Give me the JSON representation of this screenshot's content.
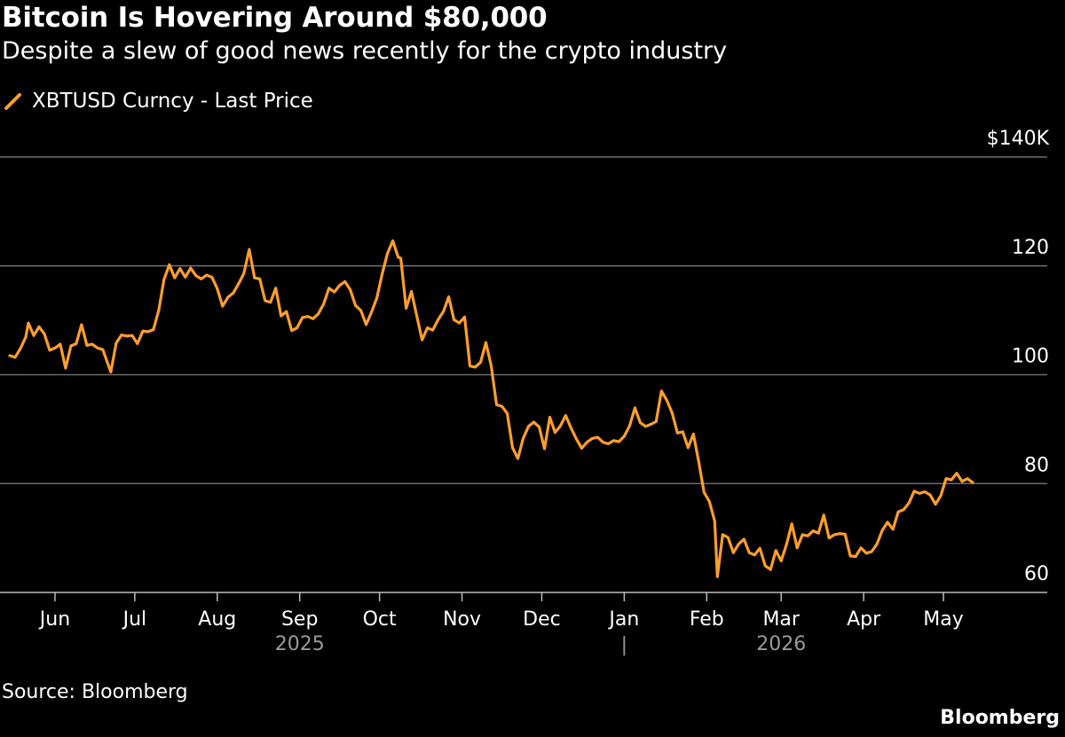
{
  "chart_data": {
    "type": "line",
    "title": "Bitcoin Is Hovering Around $80,000",
    "subtitle": "Despite a slew of good news recently for the crypto industry",
    "source": "Source: Bloomberg",
    "brand": "Bloomberg",
    "colors": {
      "line": "#ff9e2c",
      "grid": "#6b6b6b",
      "axis": "#bdbdbd",
      "background": "#000000",
      "year_label": "#9a9a9a"
    },
    "legend_placement": "top-left",
    "grid": true,
    "y_axis": {
      "side": "right",
      "ylim": [
        60,
        140
      ],
      "ticks": [
        {
          "value": 140,
          "label": "$140K"
        },
        {
          "value": 120,
          "label": "120"
        },
        {
          "value": 100,
          "label": "100"
        },
        {
          "value": 80,
          "label": "80"
        },
        {
          "value": 60,
          "label": "60"
        }
      ]
    },
    "x_axis": {
      "xlim": [
        "2025-05-15",
        "2026-05-20"
      ],
      "ticks": [
        {
          "date": "2025-06-01",
          "label": "Jun"
        },
        {
          "date": "2025-07-01",
          "label": "Jul"
        },
        {
          "date": "2025-08-01",
          "label": "Aug"
        },
        {
          "date": "2025-09-01",
          "label": "Sep"
        },
        {
          "date": "2025-10-01",
          "label": "Oct"
        },
        {
          "date": "2025-11-01",
          "label": "Nov"
        },
        {
          "date": "2025-12-01",
          "label": "Dec"
        },
        {
          "date": "2026-01-01",
          "label": "Jan"
        },
        {
          "date": "2026-02-01",
          "label": "Feb"
        },
        {
          "date": "2026-03-01",
          "label": "Mar"
        },
        {
          "date": "2026-04-01",
          "label": "Apr"
        },
        {
          "date": "2026-05-01",
          "label": "May"
        }
      ],
      "year_labels": [
        {
          "date": "2025-09-01",
          "label": "2025"
        },
        {
          "date": "2026-03-01",
          "label": "2026"
        }
      ],
      "year_divider": {
        "date": "2026-01-01",
        "label": "|"
      }
    },
    "series": [
      {
        "name": "XBTUSD Curncy - Last Price",
        "points": [
          [
            "2025-05-15",
            103.5
          ],
          [
            "2025-05-17",
            103.2
          ],
          [
            "2025-05-19",
            104.8
          ],
          [
            "2025-05-21",
            106.9
          ],
          [
            "2025-05-22",
            109.5
          ],
          [
            "2025-05-24",
            107.2
          ],
          [
            "2025-05-26",
            108.8
          ],
          [
            "2025-05-28",
            107.5
          ],
          [
            "2025-05-30",
            104.5
          ],
          [
            "2025-06-01",
            104.9
          ],
          [
            "2025-06-03",
            105.6
          ],
          [
            "2025-06-05",
            101.2
          ],
          [
            "2025-06-07",
            105.3
          ],
          [
            "2025-06-09",
            105.7
          ],
          [
            "2025-06-11",
            109.2
          ],
          [
            "2025-06-13",
            105.4
          ],
          [
            "2025-06-15",
            105.6
          ],
          [
            "2025-06-17",
            104.9
          ],
          [
            "2025-06-19",
            104.6
          ],
          [
            "2025-06-20",
            103.2
          ],
          [
            "2025-06-22",
            100.5
          ],
          [
            "2025-06-24",
            105.8
          ],
          [
            "2025-06-26",
            107.3
          ],
          [
            "2025-06-28",
            107.1
          ],
          [
            "2025-06-30",
            107.2
          ],
          [
            "2025-07-02",
            105.7
          ],
          [
            "2025-07-04",
            108.0
          ],
          [
            "2025-07-06",
            107.9
          ],
          [
            "2025-07-08",
            108.3
          ],
          [
            "2025-07-10",
            111.8
          ],
          [
            "2025-07-12",
            117.5
          ],
          [
            "2025-07-14",
            120.2
          ],
          [
            "2025-07-16",
            117.8
          ],
          [
            "2025-07-18",
            119.5
          ],
          [
            "2025-07-20",
            117.9
          ],
          [
            "2025-07-22",
            119.6
          ],
          [
            "2025-07-24",
            118.2
          ],
          [
            "2025-07-26",
            117.6
          ],
          [
            "2025-07-28",
            118.3
          ],
          [
            "2025-07-30",
            117.9
          ],
          [
            "2025-08-01",
            115.8
          ],
          [
            "2025-08-03",
            112.6
          ],
          [
            "2025-08-05",
            114.2
          ],
          [
            "2025-08-07",
            115.0
          ],
          [
            "2025-08-09",
            116.7
          ],
          [
            "2025-08-11",
            118.6
          ],
          [
            "2025-08-13",
            123.0
          ],
          [
            "2025-08-15",
            117.8
          ],
          [
            "2025-08-17",
            117.6
          ],
          [
            "2025-08-19",
            113.6
          ],
          [
            "2025-08-21",
            113.3
          ],
          [
            "2025-08-23",
            115.9
          ],
          [
            "2025-08-25",
            110.8
          ],
          [
            "2025-08-27",
            111.6
          ],
          [
            "2025-08-29",
            108.1
          ],
          [
            "2025-08-31",
            108.6
          ],
          [
            "2025-09-02",
            110.5
          ],
          [
            "2025-09-04",
            110.7
          ],
          [
            "2025-09-06",
            110.3
          ],
          [
            "2025-09-08",
            111.2
          ],
          [
            "2025-09-10",
            113.0
          ],
          [
            "2025-09-12",
            115.9
          ],
          [
            "2025-09-14",
            115.2
          ],
          [
            "2025-09-16",
            116.4
          ],
          [
            "2025-09-18",
            117.1
          ],
          [
            "2025-09-20",
            115.6
          ],
          [
            "2025-09-22",
            112.7
          ],
          [
            "2025-09-24",
            111.8
          ],
          [
            "2025-09-26",
            109.2
          ],
          [
            "2025-09-28",
            111.5
          ],
          [
            "2025-09-30",
            114.1
          ],
          [
            "2025-10-02",
            118.5
          ],
          [
            "2025-10-04",
            122.3
          ],
          [
            "2025-10-06",
            124.6
          ],
          [
            "2025-10-08",
            121.6
          ],
          [
            "2025-10-09",
            121.4
          ],
          [
            "2025-10-11",
            112.2
          ],
          [
            "2025-10-13",
            115.3
          ],
          [
            "2025-10-15",
            110.8
          ],
          [
            "2025-10-17",
            106.4
          ],
          [
            "2025-10-19",
            108.6
          ],
          [
            "2025-10-21",
            108.2
          ],
          [
            "2025-10-23",
            110.1
          ],
          [
            "2025-10-25",
            111.6
          ],
          [
            "2025-10-27",
            114.3
          ],
          [
            "2025-10-29",
            110.1
          ],
          [
            "2025-10-31",
            109.5
          ],
          [
            "2025-11-02",
            110.6
          ],
          [
            "2025-11-04",
            101.6
          ],
          [
            "2025-11-06",
            101.4
          ],
          [
            "2025-11-08",
            102.3
          ],
          [
            "2025-11-10",
            105.9
          ],
          [
            "2025-11-12",
            101.6
          ],
          [
            "2025-11-14",
            94.5
          ],
          [
            "2025-11-16",
            94.2
          ],
          [
            "2025-11-18",
            92.9
          ],
          [
            "2025-11-20",
            86.6
          ],
          [
            "2025-11-22",
            84.6
          ],
          [
            "2025-11-24",
            88.3
          ],
          [
            "2025-11-26",
            90.5
          ],
          [
            "2025-11-28",
            91.3
          ],
          [
            "2025-11-30",
            90.4
          ],
          [
            "2025-12-02",
            86.4
          ],
          [
            "2025-12-04",
            92.2
          ],
          [
            "2025-12-06",
            89.4
          ],
          [
            "2025-12-08",
            90.6
          ],
          [
            "2025-12-10",
            92.5
          ],
          [
            "2025-12-12",
            90.2
          ],
          [
            "2025-12-14",
            88.2
          ],
          [
            "2025-12-16",
            86.5
          ],
          [
            "2025-12-18",
            87.6
          ],
          [
            "2025-12-20",
            88.3
          ],
          [
            "2025-12-22",
            88.5
          ],
          [
            "2025-12-24",
            87.6
          ],
          [
            "2025-12-26",
            87.3
          ],
          [
            "2025-12-28",
            87.9
          ],
          [
            "2025-12-30",
            87.7
          ],
          [
            "2026-01-01",
            88.7
          ],
          [
            "2026-01-03",
            90.6
          ],
          [
            "2026-01-05",
            93.9
          ],
          [
            "2026-01-07",
            91.2
          ],
          [
            "2026-01-09",
            90.5
          ],
          [
            "2026-01-11",
            90.9
          ],
          [
            "2026-01-13",
            91.4
          ],
          [
            "2026-01-15",
            97.0
          ],
          [
            "2026-01-17",
            95.3
          ],
          [
            "2026-01-19",
            93.0
          ],
          [
            "2026-01-21",
            89.3
          ],
          [
            "2026-01-23",
            89.5
          ],
          [
            "2026-01-25",
            86.6
          ],
          [
            "2026-01-27",
            89.1
          ],
          [
            "2026-01-29",
            84.0
          ],
          [
            "2026-01-31",
            78.4
          ],
          [
            "2026-02-02",
            76.7
          ],
          [
            "2026-02-04",
            73.1
          ],
          [
            "2026-02-05",
            62.9
          ],
          [
            "2026-02-07",
            70.6
          ],
          [
            "2026-02-09",
            70.1
          ],
          [
            "2026-02-11",
            67.3
          ],
          [
            "2026-02-13",
            68.9
          ],
          [
            "2026-02-15",
            69.8
          ],
          [
            "2026-02-17",
            67.3
          ],
          [
            "2026-02-19",
            66.9
          ],
          [
            "2026-02-21",
            68.1
          ],
          [
            "2026-02-23",
            64.9
          ],
          [
            "2026-02-25",
            64.2
          ],
          [
            "2026-02-27",
            67.7
          ],
          [
            "2026-03-01",
            65.8
          ],
          [
            "2026-03-03",
            68.8
          ],
          [
            "2026-03-05",
            72.6
          ],
          [
            "2026-03-07",
            68.2
          ],
          [
            "2026-03-09",
            70.6
          ],
          [
            "2026-03-11",
            70.4
          ],
          [
            "2026-03-13",
            71.3
          ],
          [
            "2026-03-15",
            70.9
          ],
          [
            "2026-03-17",
            74.2
          ],
          [
            "2026-03-19",
            70.0
          ],
          [
            "2026-03-21",
            70.6
          ],
          [
            "2026-03-23",
            70.8
          ],
          [
            "2026-03-25",
            70.7
          ],
          [
            "2026-03-27",
            66.7
          ],
          [
            "2026-03-29",
            66.6
          ],
          [
            "2026-03-31",
            68.2
          ],
          [
            "2026-04-02",
            67.2
          ],
          [
            "2026-04-04",
            67.5
          ],
          [
            "2026-04-06",
            68.9
          ],
          [
            "2026-04-08",
            71.4
          ],
          [
            "2026-04-10",
            72.9
          ],
          [
            "2026-04-12",
            71.6
          ],
          [
            "2026-04-14",
            74.8
          ],
          [
            "2026-04-16",
            75.2
          ],
          [
            "2026-04-18",
            76.4
          ],
          [
            "2026-04-20",
            78.6
          ],
          [
            "2026-04-22",
            78.2
          ],
          [
            "2026-04-24",
            78.5
          ],
          [
            "2026-04-26",
            77.9
          ],
          [
            "2026-04-28",
            76.2
          ],
          [
            "2026-04-30",
            77.8
          ],
          [
            "2026-05-02",
            80.9
          ],
          [
            "2026-05-04",
            80.7
          ],
          [
            "2026-05-06",
            81.9
          ],
          [
            "2026-05-08",
            80.4
          ],
          [
            "2026-05-10",
            80.9
          ],
          [
            "2026-05-12",
            80.2
          ]
        ]
      }
    ]
  }
}
